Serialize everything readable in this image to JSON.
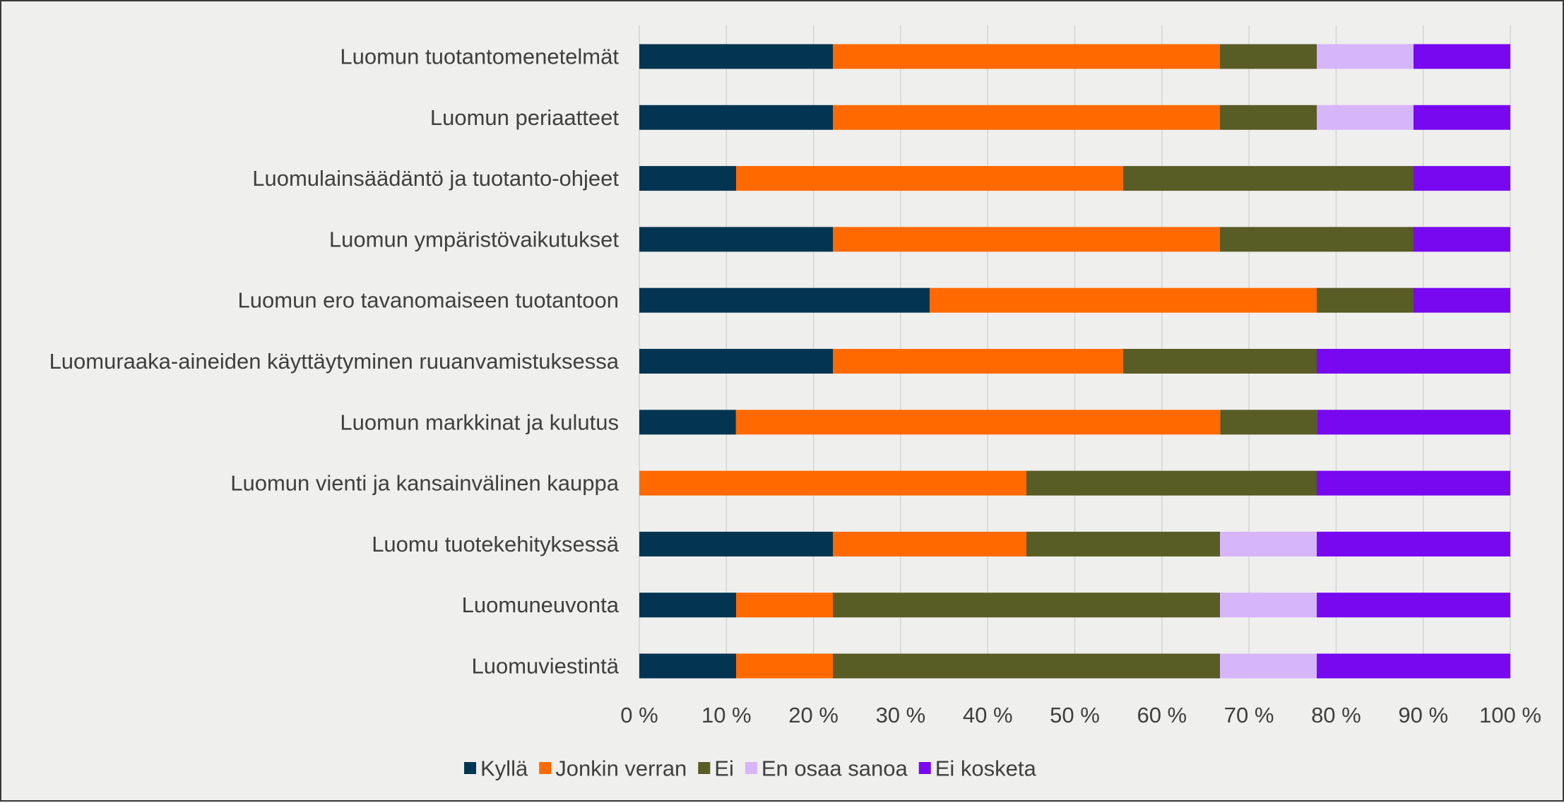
{
  "chart_data": {
    "type": "bar",
    "orientation": "horizontal",
    "stacked": "percent",
    "title": "",
    "xlabel": "",
    "ylabel": "",
    "xlim": [
      0,
      100
    ],
    "grid": true,
    "legend_position": "bottom",
    "categories": [
      "Luomun tuotantomenetelmät",
      "Luomun periaatteet",
      "Luomulainsäädäntö ja tuotanto-ohjeet",
      "Luomun ympäristövaikutukset",
      "Luomun ero tavanomaiseen tuotantoon",
      "Luomuraaka-aineiden käyttäytyminen ruuanvamistuksessa",
      "Luomun markkinat ja kulutus",
      "Luomun vienti ja kansainvälinen kauppa",
      "Luomu tuotekehityksessä",
      "Luomuneuvonta",
      "Luomuviestintä"
    ],
    "series": [
      {
        "name": "Kyllä",
        "color": "#033552",
        "values": [
          22.2,
          22.2,
          11.1,
          22.2,
          33.3,
          22.2,
          11.1,
          0,
          22.2,
          11.1,
          11.1
        ]
      },
      {
        "name": "Jonkin verran",
        "color": "#ff6900",
        "values": [
          44.4,
          44.4,
          44.4,
          44.4,
          44.4,
          33.3,
          55.6,
          44.4,
          22.2,
          11.1,
          11.1
        ]
      },
      {
        "name": "Ei",
        "color": "#585c25",
        "values": [
          11.1,
          11.1,
          33.3,
          22.2,
          11.1,
          22.2,
          11.1,
          33.3,
          22.2,
          44.4,
          44.4
        ]
      },
      {
        "name": "En osaa sanoa",
        "color": "#d6b5fa",
        "values": [
          11.1,
          11.1,
          0,
          0,
          0,
          0,
          0,
          0,
          11.1,
          11.1,
          11.1
        ]
      },
      {
        "name": "Ei kosketa",
        "color": "#7708f0",
        "values": [
          11.1,
          11.1,
          11.1,
          11.1,
          11.1,
          22.2,
          22.2,
          22.2,
          22.2,
          22.2,
          22.2
        ]
      }
    ],
    "x_ticks": [
      "0 %",
      "10 %",
      "20 %",
      "30 %",
      "40 %",
      "50 %",
      "60 %",
      "70 %",
      "80 %",
      "90 %",
      "100 %"
    ]
  }
}
